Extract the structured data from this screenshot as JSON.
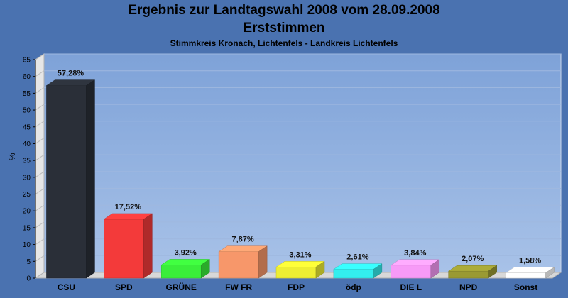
{
  "header": {
    "title": "Ergebnis zur Landtagswahl 2008 vom 28.09.2008",
    "subtitle": "Erststimmen",
    "subsubtitle": "Stimmkreis Kronach, Lichtenfels - Landkreis Lichtenfels"
  },
  "chart_data": {
    "type": "bar",
    "title": "Ergebnis zur Landtagswahl 2008 vom 28.09.2008",
    "subtitle": "Erststimmen",
    "ylabel": "%",
    "ylim": [
      0,
      65
    ],
    "yticks": [
      0,
      5,
      10,
      15,
      20,
      25,
      30,
      35,
      40,
      45,
      50,
      55,
      60,
      65
    ],
    "grid": true,
    "categories": [
      "CSU",
      "SPD",
      "GRÜNE",
      "FW FR",
      "FDP",
      "ödp",
      "DIE L",
      "NPD",
      "Sonst"
    ],
    "values": [
      57.28,
      17.52,
      3.92,
      7.87,
      3.31,
      2.61,
      3.84,
      2.07,
      1.58
    ],
    "value_labels": [
      "57,28%",
      "17,52%",
      "3,92%",
      "7,87%",
      "3,31%",
      "2,61%",
      "3,84%",
      "2,07%",
      "1,58%"
    ],
    "colors": [
      "#2a2f38",
      "#f33a3a",
      "#3aee3a",
      "#f7976a",
      "#eeee33",
      "#33eeee",
      "#f79af7",
      "#9a9a33",
      "#ffffff"
    ]
  }
}
